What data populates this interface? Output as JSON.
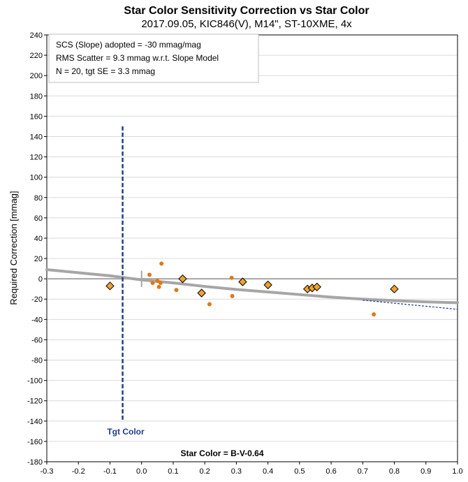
{
  "chart_data": {
    "type": "scatter",
    "title": "Star Color Sensitivity Correction vs Star Color",
    "subtitle": "2017.09.05, KIC846(V), M14\", ST-10XME, 4x",
    "xlabel": "Star Color = B-V-0.64",
    "ylabel": "Required Correction [mmag]",
    "xlim": [
      -0.3,
      1.0
    ],
    "ylim": [
      -180,
      240
    ],
    "x_ticks": [
      "-0.3",
      "-0.2",
      "-0.1",
      "0.0",
      "0.1",
      "0.2",
      "0.3",
      "0.4",
      "0.5",
      "0.6",
      "0.7",
      "0.8",
      "0.9",
      "1.0"
    ],
    "y_ticks": [
      "240",
      "220",
      "200",
      "180",
      "160",
      "140",
      "120",
      "100",
      "80",
      "60",
      "40",
      "20",
      "0",
      "-20",
      "-40",
      "-60",
      "-80",
      "-100",
      "-120",
      "-140",
      "-160",
      "-180"
    ],
    "annotation_lines": [
      "SCS (Slope) adopted  =  -30 mmag/mag",
      "RMS Scatter = 9.3 mmag w.r.t. Slope Model",
      "N = 20,  tgt SE = 3.3 mmag"
    ],
    "target": {
      "label": "Tgt Color",
      "x": -0.06,
      "y_range": [
        -140,
        150
      ]
    },
    "diamond_points": [
      {
        "x": -0.1,
        "y": -7
      },
      {
        "x": 0.13,
        "y": 0
      },
      {
        "x": 0.19,
        "y": -14
      },
      {
        "x": 0.32,
        "y": -3
      },
      {
        "x": 0.4,
        "y": -6
      },
      {
        "x": 0.525,
        "y": -10
      },
      {
        "x": 0.54,
        "y": -9
      },
      {
        "x": 0.555,
        "y": -8
      },
      {
        "x": 0.8,
        "y": -10
      }
    ],
    "dot_points": [
      {
        "x": 0.025,
        "y": 4
      },
      {
        "x": 0.035,
        "y": -4
      },
      {
        "x": 0.05,
        "y": -2
      },
      {
        "x": 0.055,
        "y": -8
      },
      {
        "x": 0.06,
        "y": -4
      },
      {
        "x": 0.063,
        "y": 15
      },
      {
        "x": 0.11,
        "y": -11
      },
      {
        "x": 0.215,
        "y": -25
      },
      {
        "x": 0.285,
        "y": 1
      },
      {
        "x": 0.287,
        "y": -17
      },
      {
        "x": 0.735,
        "y": -35
      }
    ],
    "fit_curve": [
      {
        "x": -0.3,
        "y": 9
      },
      {
        "x": -0.2,
        "y": 6
      },
      {
        "x": -0.1,
        "y": 3
      },
      {
        "x": 0.0,
        "y": -1
      },
      {
        "x": 0.1,
        "y": -4
      },
      {
        "x": 0.2,
        "y": -7.5
      },
      {
        "x": 0.3,
        "y": -10.5
      },
      {
        "x": 0.4,
        "y": -13
      },
      {
        "x": 0.5,
        "y": -15.5
      },
      {
        "x": 0.6,
        "y": -18
      },
      {
        "x": 0.7,
        "y": -20
      },
      {
        "x": 0.8,
        "y": -21.5
      },
      {
        "x": 0.9,
        "y": -22.7
      },
      {
        "x": 1.0,
        "y": -23.5
      }
    ],
    "slope_line": [
      {
        "x": 0.7,
        "y": -21
      },
      {
        "x": 1.0,
        "y": -30
      }
    ],
    "colors": {
      "diamond_fill": "#f0a030",
      "diamond_stroke": "#000000",
      "dot": "#e07818",
      "fit_curve": "#a6a6a6",
      "slope_line": "#1f3d8c",
      "target_line": "#1f3d8c",
      "zero_line": "#a6a6a6",
      "gridline": "#d9d9d9"
    }
  }
}
